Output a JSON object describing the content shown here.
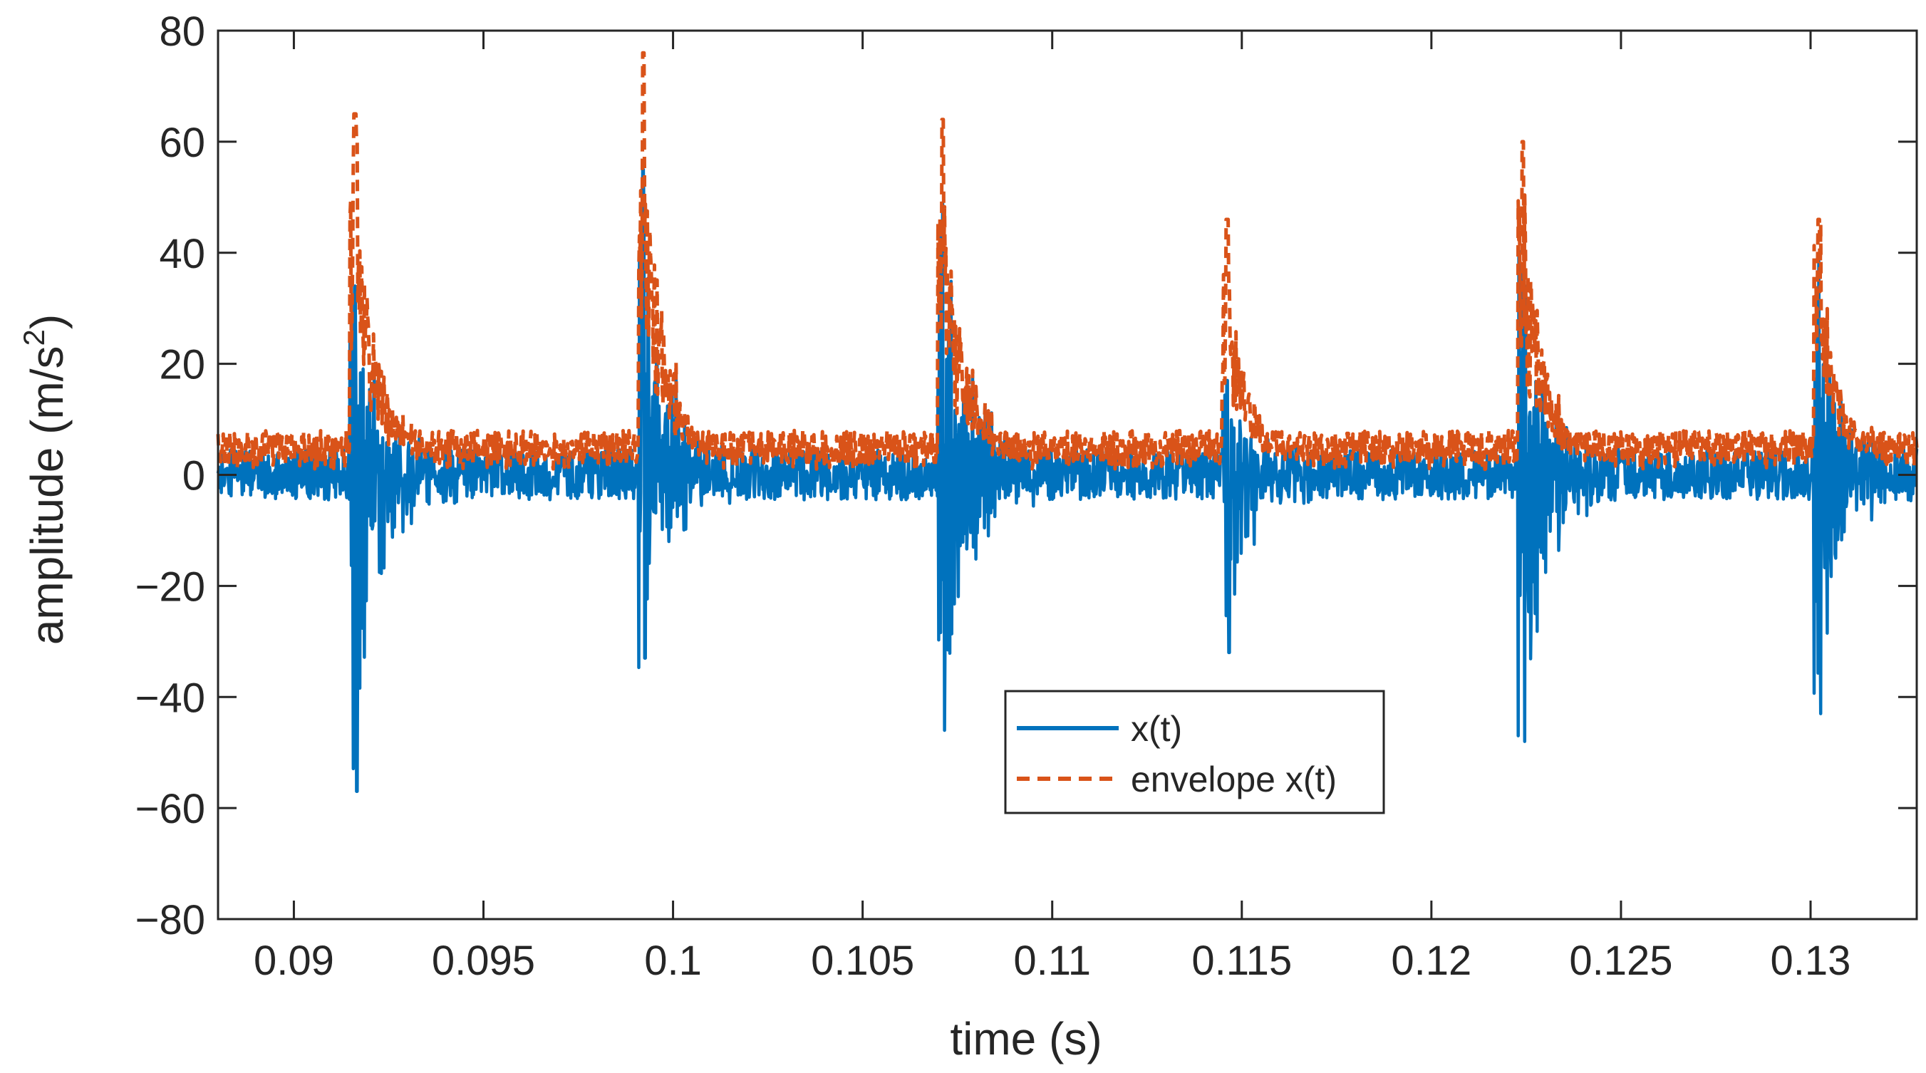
{
  "chart_data": {
    "type": "line",
    "title": "",
    "xlabel": "time (s)",
    "ylabel_main": "amplitude (m/s",
    "ylabel_sup": "2",
    "ylabel_close": ")",
    "xlim": [
      0.088,
      0.1328
    ],
    "ylim": [
      -80,
      80
    ],
    "xticks": [
      0.09,
      0.095,
      0.1,
      0.105,
      0.11,
      0.115,
      0.12,
      0.125,
      0.13
    ],
    "xtick_labels": [
      "0.09",
      "0.095",
      "0.1",
      "0.105",
      "0.11",
      "0.115",
      "0.12",
      "0.125",
      "0.13"
    ],
    "yticks": [
      -80,
      -60,
      -40,
      -20,
      0,
      20,
      40,
      60,
      80
    ],
    "ytick_labels": [
      "−80",
      "−60",
      "−40",
      "−20",
      "0",
      "20",
      "40",
      "60",
      "80"
    ],
    "grid": false,
    "legend_position": "center",
    "series": [
      {
        "name": "x(t)",
        "color": "#0072BD",
        "style": "solid",
        "peak_times": [
          0.0916,
          0.0992,
          0.1071,
          0.1146,
          0.1224,
          0.1302
        ],
        "peak_max": [
          34,
          55,
          49,
          17,
          37,
          39
        ],
        "peak_min": [
          -57,
          -33,
          -46,
          -32,
          -48,
          -43
        ],
        "baseline_range": [
          -5,
          5
        ]
      },
      {
        "name": "envelope x(t)",
        "color": "#D95319",
        "style": "dashed",
        "peak_times": [
          0.0916,
          0.0992,
          0.1071,
          0.1146,
          0.1224,
          0.1302
        ],
        "peak_max": [
          65,
          76,
          64,
          46,
          60,
          46
        ],
        "baseline_range": [
          1,
          8
        ]
      }
    ],
    "legend": [
      "x(t)",
      "envelope x(t)"
    ]
  }
}
